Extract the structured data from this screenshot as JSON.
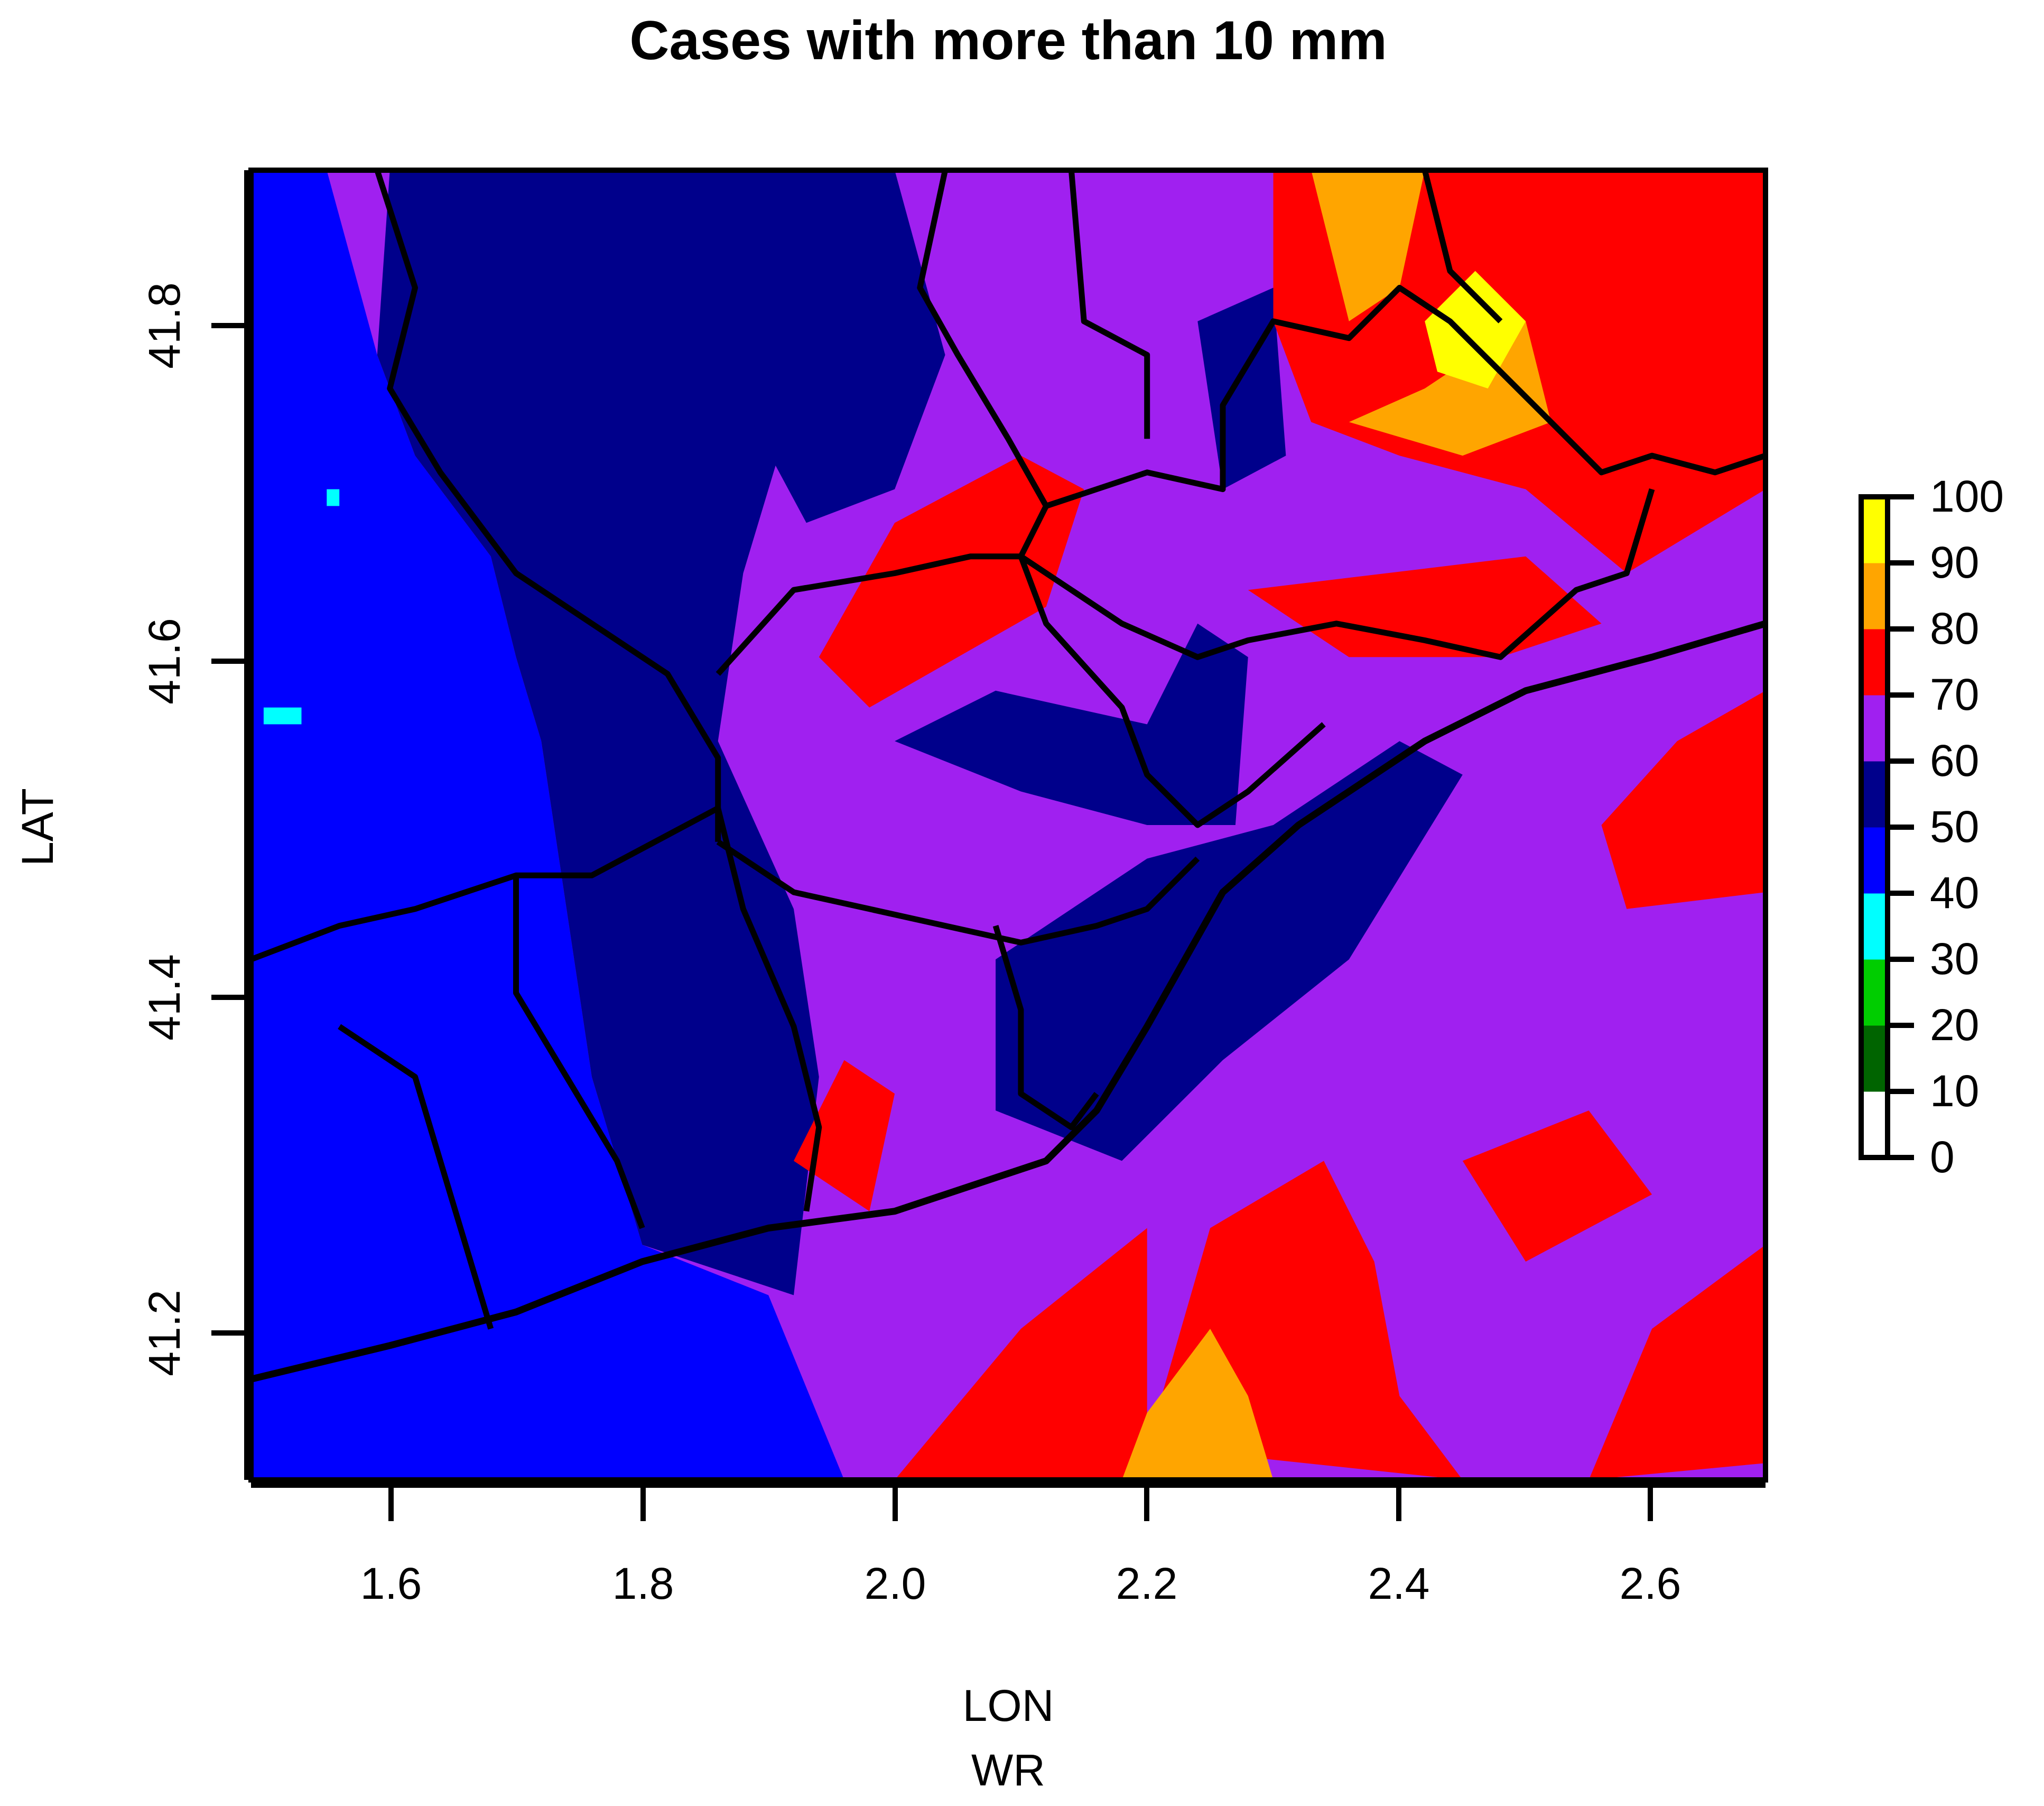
{
  "title": "Cases with more than 10 mm",
  "x_label": "LON",
  "x_sublabel": "WR",
  "y_label": "LAT",
  "x_ticks": [
    "1.6",
    "1.8",
    "2.0",
    "2.2",
    "2.4",
    "2.6"
  ],
  "y_ticks": [
    "41.2",
    "41.4",
    "41.6",
    "41.8"
  ],
  "colorbar": {
    "ticks": [
      "0",
      "10",
      "20",
      "30",
      "40",
      "50",
      "60",
      "70",
      "80",
      "90",
      "100"
    ],
    "colors": [
      "#ffffff",
      "#006400",
      "#00cd00",
      "#00ffff",
      "#0000ff",
      "#00008b",
      "#a020f0",
      "#ff0000",
      "#ffa500",
      "#ffff00"
    ]
  },
  "chart_data": {
    "type": "heatmap",
    "title": "Cases with more than 10 mm",
    "xlabel": "LON",
    "ylabel": "LAT",
    "xlim": [
      1.49,
      2.69
    ],
    "ylim": [
      41.11,
      41.89
    ],
    "x_ticks": [
      1.6,
      1.8,
      2.0,
      2.2,
      2.4,
      2.6
    ],
    "y_ticks": [
      41.2,
      41.4,
      41.6,
      41.8
    ],
    "color_scale": {
      "min": 0,
      "max": 100,
      "step": 10
    },
    "regions": [
      {
        "value": 45,
        "polygon": [
          [
            1.49,
            41.11
          ],
          [
            1.49,
            41.89
          ],
          [
            1.55,
            41.89
          ],
          [
            1.59,
            41.78
          ],
          [
            1.62,
            41.72
          ],
          [
            1.68,
            41.66
          ],
          [
            1.7,
            41.6
          ],
          [
            1.72,
            41.55
          ],
          [
            1.74,
            41.45
          ],
          [
            1.76,
            41.35
          ],
          [
            1.8,
            41.25
          ],
          [
            1.9,
            41.22
          ],
          [
            1.96,
            41.11
          ]
        ]
      },
      {
        "value": 55,
        "polygon": [
          [
            1.6,
            41.89
          ],
          [
            1.9,
            41.89
          ],
          [
            1.92,
            41.75
          ],
          [
            1.88,
            41.65
          ],
          [
            1.86,
            41.55
          ],
          [
            1.92,
            41.45
          ],
          [
            1.94,
            41.35
          ],
          [
            1.92,
            41.22
          ],
          [
            1.8,
            41.25
          ],
          [
            1.76,
            41.35
          ],
          [
            1.74,
            41.45
          ],
          [
            1.72,
            41.55
          ],
          [
            1.7,
            41.6
          ],
          [
            1.68,
            41.66
          ],
          [
            1.62,
            41.72
          ],
          [
            1.59,
            41.78
          ]
        ]
      },
      {
        "value": 55,
        "polygon": [
          [
            2.08,
            41.42
          ],
          [
            2.2,
            41.48
          ],
          [
            2.3,
            41.5
          ],
          [
            2.4,
            41.55
          ],
          [
            2.45,
            41.53
          ],
          [
            2.36,
            41.42
          ],
          [
            2.26,
            41.36
          ],
          [
            2.18,
            41.3
          ],
          [
            2.08,
            41.33
          ]
        ]
      },
      {
        "value": 55,
        "polygon": [
          [
            2.0,
            41.55
          ],
          [
            2.08,
            41.58
          ],
          [
            2.2,
            41.56
          ],
          [
            2.24,
            41.62
          ],
          [
            2.28,
            41.6
          ],
          [
            2.27,
            41.5
          ],
          [
            2.2,
            41.5
          ],
          [
            2.1,
            41.52
          ]
        ]
      },
      {
        "value": 55,
        "polygon": [
          [
            1.87,
            41.89
          ],
          [
            2.0,
            41.89
          ],
          [
            2.04,
            41.78
          ],
          [
            2.0,
            41.7
          ],
          [
            1.93,
            41.68
          ],
          [
            1.88,
            41.75
          ]
        ]
      },
      {
        "value": 55,
        "polygon": [
          [
            2.24,
            41.8
          ],
          [
            2.3,
            41.82
          ],
          [
            2.31,
            41.72
          ],
          [
            2.26,
            41.7
          ]
        ]
      },
      {
        "value": 75,
        "polygon": [
          [
            2.3,
            41.89
          ],
          [
            2.69,
            41.89
          ],
          [
            2.69,
            41.7
          ],
          [
            2.58,
            41.65
          ],
          [
            2.5,
            41.7
          ],
          [
            2.4,
            41.72
          ],
          [
            2.33,
            41.74
          ],
          [
            2.3,
            41.8
          ]
        ]
      },
      {
        "value": 75,
        "polygon": [
          [
            1.94,
            41.6
          ],
          [
            2.0,
            41.68
          ],
          [
            2.1,
            41.72
          ],
          [
            2.15,
            41.7
          ],
          [
            2.12,
            41.63
          ],
          [
            2.05,
            41.6
          ],
          [
            1.98,
            41.57
          ]
        ]
      },
      {
        "value": 75,
        "polygon": [
          [
            2.28,
            41.64
          ],
          [
            2.5,
            41.66
          ],
          [
            2.56,
            41.62
          ],
          [
            2.48,
            41.6
          ],
          [
            2.36,
            41.6
          ]
        ]
      },
      {
        "value": 75,
        "polygon": [
          [
            2.2,
            41.13
          ],
          [
            2.25,
            41.26
          ],
          [
            2.34,
            41.3
          ],
          [
            2.38,
            41.24
          ],
          [
            2.4,
            41.16
          ],
          [
            2.45,
            41.11
          ]
        ]
      },
      {
        "value": 75,
        "polygon": [
          [
            2.0,
            41.11
          ],
          [
            2.1,
            41.2
          ],
          [
            2.2,
            41.26
          ],
          [
            2.2,
            41.11
          ]
        ]
      },
      {
        "value": 75,
        "polygon": [
          [
            1.92,
            41.3
          ],
          [
            1.96,
            41.36
          ],
          [
            2.0,
            41.34
          ],
          [
            1.98,
            41.27
          ]
        ]
      },
      {
        "value": 75,
        "polygon": [
          [
            2.58,
            41.45
          ],
          [
            2.69,
            41.46
          ],
          [
            2.69,
            41.58
          ],
          [
            2.62,
            41.55
          ],
          [
            2.56,
            41.5
          ]
        ]
      },
      {
        "value": 75,
        "polygon": [
          [
            2.45,
            41.3
          ],
          [
            2.55,
            41.33
          ],
          [
            2.6,
            41.28
          ],
          [
            2.5,
            41.24
          ]
        ]
      },
      {
        "value": 75,
        "polygon": [
          [
            2.55,
            41.11
          ],
          [
            2.69,
            41.12
          ],
          [
            2.69,
            41.25
          ],
          [
            2.6,
            41.2
          ]
        ]
      },
      {
        "value": 85,
        "polygon": [
          [
            2.33,
            41.89
          ],
          [
            2.42,
            41.89
          ],
          [
            2.4,
            41.82
          ],
          [
            2.36,
            41.8
          ]
        ]
      },
      {
        "value": 85,
        "polygon": [
          [
            2.36,
            41.74
          ],
          [
            2.42,
            41.76
          ],
          [
            2.5,
            41.8
          ],
          [
            2.52,
            41.74
          ],
          [
            2.45,
            41.72
          ]
        ]
      },
      {
        "value": 85,
        "polygon": [
          [
            2.18,
            41.11
          ],
          [
            2.2,
            41.15
          ],
          [
            2.25,
            41.2
          ],
          [
            2.28,
            41.16
          ],
          [
            2.3,
            41.11
          ]
        ]
      },
      {
        "value": 95,
        "polygon": [
          [
            2.42,
            41.8
          ],
          [
            2.46,
            41.83
          ],
          [
            2.5,
            41.8
          ],
          [
            2.47,
            41.76
          ],
          [
            2.43,
            41.77
          ]
        ]
      },
      {
        "value": 35,
        "polygon": [
          [
            1.5,
            41.56
          ],
          [
            1.5,
            41.57
          ],
          [
            1.53,
            41.57
          ],
          [
            1.53,
            41.56
          ]
        ]
      },
      {
        "value": 35,
        "polygon": [
          [
            1.55,
            41.69
          ],
          [
            1.55,
            41.7
          ],
          [
            1.56,
            41.7
          ],
          [
            1.56,
            41.69
          ]
        ]
      }
    ],
    "coastline": [
      [
        1.49,
        41.17
      ],
      [
        1.6,
        41.19
      ],
      [
        1.7,
        41.21
      ],
      [
        1.8,
        41.24
      ],
      [
        1.9,
        41.26
      ],
      [
        2.0,
        41.27
      ],
      [
        2.12,
        41.3
      ],
      [
        2.16,
        41.33
      ],
      [
        2.2,
        41.38
      ],
      [
        2.26,
        41.46
      ],
      [
        2.32,
        41.5
      ],
      [
        2.42,
        41.55
      ],
      [
        2.5,
        41.58
      ],
      [
        2.6,
        41.6
      ],
      [
        2.69,
        41.62
      ]
    ],
    "boundaries": [
      [
        [
          1.49,
          41.42
        ],
        [
          1.56,
          41.44
        ],
        [
          1.62,
          41.45
        ],
        [
          1.7,
          41.47
        ],
        [
          1.76,
          41.47
        ],
        [
          1.86,
          41.51
        ],
        [
          1.88,
          41.45
        ],
        [
          1.92,
          41.38
        ],
        [
          1.94,
          41.32
        ],
        [
          1.93,
          41.27
        ]
      ],
      [
        [
          1.59,
          41.89
        ],
        [
          1.62,
          41.82
        ],
        [
          1.6,
          41.76
        ],
        [
          1.64,
          41.71
        ],
        [
          1.7,
          41.65
        ],
        [
          1.76,
          41.62
        ],
        [
          1.82,
          41.59
        ],
        [
          1.86,
          41.54
        ],
        [
          1.86,
          41.49
        ]
      ],
      [
        [
          1.86,
          41.59
        ],
        [
          1.92,
          41.64
        ],
        [
          2.0,
          41.65
        ],
        [
          2.06,
          41.66
        ],
        [
          2.1,
          41.66
        ],
        [
          2.12,
          41.62
        ],
        [
          2.18,
          41.57
        ],
        [
          2.2,
          41.53
        ],
        [
          2.24,
          41.5
        ],
        [
          2.28,
          41.52
        ],
        [
          2.34,
          41.56
        ]
      ],
      [
        [
          2.04,
          41.89
        ],
        [
          2.02,
          41.82
        ],
        [
          2.05,
          41.78
        ],
        [
          2.09,
          41.73
        ],
        [
          2.12,
          41.69
        ],
        [
          2.1,
          41.66
        ]
      ],
      [
        [
          2.12,
          41.69
        ],
        [
          2.2,
          41.71
        ],
        [
          2.26,
          41.7
        ],
        [
          2.26,
          41.75
        ],
        [
          2.3,
          41.8
        ],
        [
          2.36,
          41.79
        ],
        [
          2.4,
          41.82
        ],
        [
          2.44,
          41.8
        ],
        [
          2.48,
          41.77
        ],
        [
          2.52,
          41.74
        ],
        [
          2.56,
          41.71
        ],
        [
          2.6,
          41.72
        ],
        [
          2.65,
          41.71
        ],
        [
          2.69,
          41.72
        ]
      ],
      [
        [
          2.14,
          41.89
        ],
        [
          2.15,
          41.8
        ],
        [
          2.2,
          41.78
        ],
        [
          2.2,
          41.73
        ]
      ],
      [
        [
          2.42,
          41.89
        ],
        [
          2.44,
          41.83
        ],
        [
          2.48,
          41.8
        ]
      ],
      [
        [
          2.1,
          41.66
        ],
        [
          2.18,
          41.62
        ],
        [
          2.24,
          41.6
        ],
        [
          2.28,
          41.61
        ],
        [
          2.35,
          41.62
        ],
        [
          2.42,
          41.61
        ],
        [
          2.48,
          41.6
        ],
        [
          2.54,
          41.64
        ],
        [
          2.58,
          41.65
        ],
        [
          2.6,
          41.7
        ]
      ],
      [
        [
          1.86,
          41.49
        ],
        [
          1.92,
          41.46
        ],
        [
          1.98,
          41.45
        ],
        [
          2.04,
          41.44
        ],
        [
          2.1,
          41.43
        ],
        [
          2.16,
          41.44
        ],
        [
          2.2,
          41.45
        ],
        [
          2.24,
          41.48
        ]
      ],
      [
        [
          2.08,
          41.44
        ],
        [
          2.1,
          41.39
        ],
        [
          2.1,
          41.34
        ],
        [
          2.14,
          41.32
        ],
        [
          2.16,
          41.34
        ]
      ],
      [
        [
          1.56,
          41.38
        ],
        [
          1.62,
          41.35
        ],
        [
          1.64,
          41.3
        ],
        [
          1.66,
          41.25
        ],
        [
          1.68,
          41.2
        ]
      ],
      [
        [
          1.7,
          41.47
        ],
        [
          1.7,
          41.4
        ],
        [
          1.74,
          41.35
        ],
        [
          1.78,
          41.3
        ],
        [
          1.8,
          41.26
        ]
      ]
    ]
  }
}
